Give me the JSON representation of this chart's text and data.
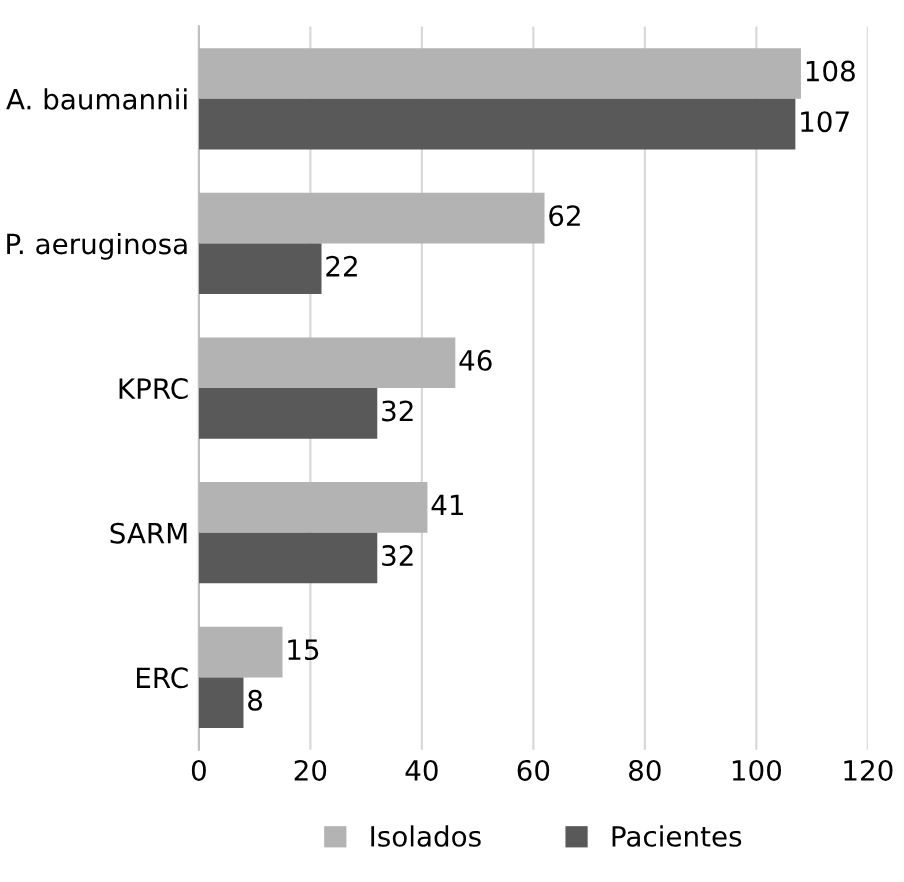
{
  "chart_data": {
    "type": "bar",
    "orientation": "horizontal",
    "categories": [
      "A. baumannii",
      "P. aeruginosa",
      "KPRC",
      "SARM",
      "ERC"
    ],
    "series": [
      {
        "name": "Isolados",
        "color": "#b3b3b3",
        "values": [
          108,
          62,
          46,
          41,
          15
        ]
      },
      {
        "name": "Pacientes",
        "color": "#595959",
        "values": [
          107,
          22,
          32,
          32,
          8
        ]
      }
    ],
    "xlim": [
      0,
      120
    ],
    "xticks": [
      0,
      20,
      40,
      60,
      80,
      100,
      120
    ],
    "grid": "x",
    "legend": "bottom",
    "data_labels": true
  }
}
